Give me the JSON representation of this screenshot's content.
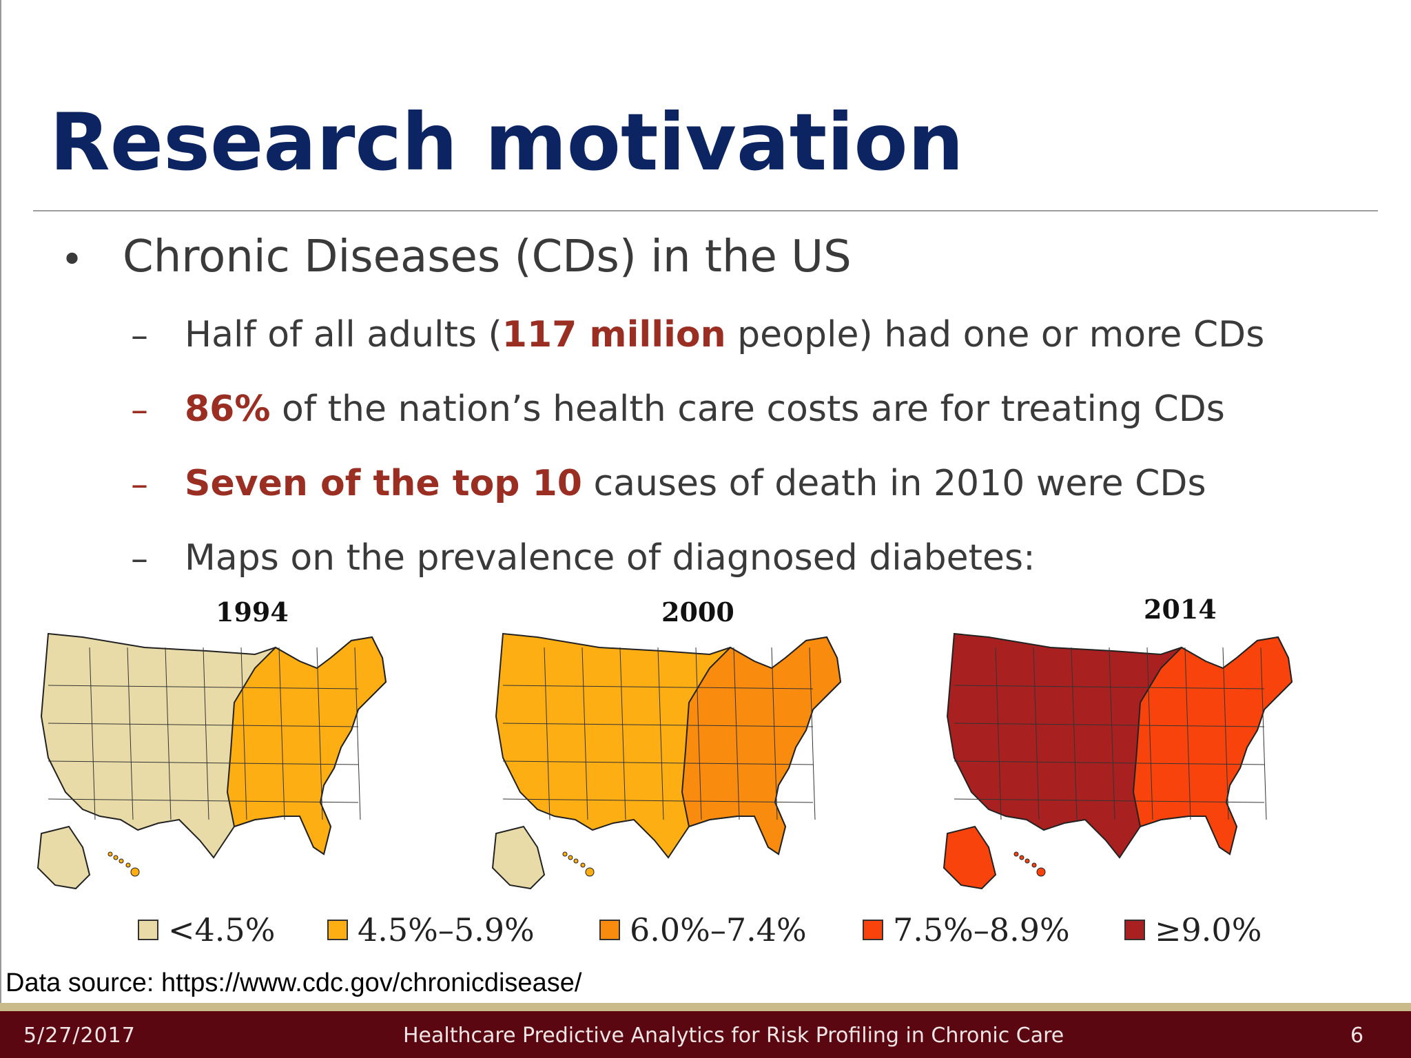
{
  "slide": {
    "title": "Research motivation",
    "bullet": {
      "marker": "•",
      "text": "Chronic Diseases (CDs) in the US"
    },
    "subpoints": [
      {
        "pre": "Half of all adults (",
        "highlight": "117 million",
        "post": " people) had one or more CDs"
      },
      {
        "pre": "",
        "highlight": "86%",
        "post": " of the nation’s health care costs are for treating CDs"
      },
      {
        "pre": "",
        "highlight": "Seven of the top 10",
        "post": " causes of death in 2010 were CDs"
      },
      {
        "pre": "Maps on the prevalence of diagnosed diabetes:",
        "highlight": "",
        "post": ""
      }
    ],
    "dash": "–",
    "maps": [
      {
        "year": "1994",
        "dominant_category": "<4.5%",
        "secondary_category": "4.5%–5.9%"
      },
      {
        "year": "2000",
        "dominant_category": "4.5%–5.9%",
        "secondary_category": "6.0%–7.4%"
      },
      {
        "year": "2014",
        "dominant_category": "≥9.0%",
        "secondary_category": "7.5%–8.9%"
      }
    ],
    "legend": [
      {
        "label": "<4.5%",
        "color": "#e8dba8"
      },
      {
        "label": "4.5%–5.9%",
        "color": "#fcae12"
      },
      {
        "label": "6.0%–7.4%",
        "color": "#f98b0e"
      },
      {
        "label": "7.5%–8.9%",
        "color": "#f9430c"
      },
      {
        "label": "≥9.0%",
        "color": "#a8201f"
      }
    ],
    "source": "Data source: https://www.cdc.gov/chronicdisease/",
    "footer": {
      "date": "5/27/2017",
      "title": "Healthcare Predictive Analytics for Risk Profiling in Chronic Care",
      "page": "6"
    },
    "colors": {
      "title": "#0c2462",
      "highlight": "#9a2e22",
      "footer_bg": "#5a0712",
      "footer_band": "#c9bb8a"
    }
  }
}
